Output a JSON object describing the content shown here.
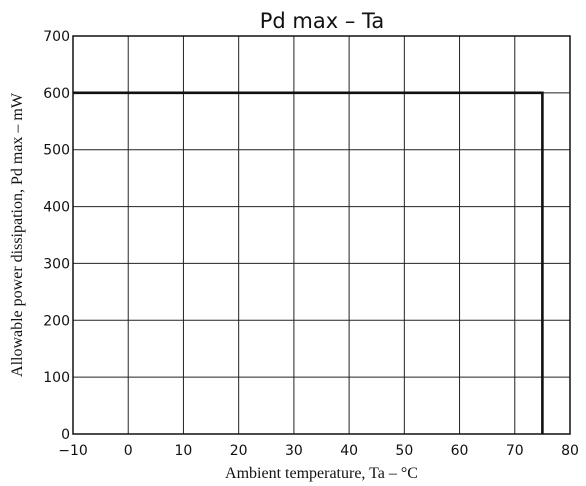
{
  "chart_data": {
    "type": "line",
    "title": "Pd max – Ta",
    "xlabel": "Ambient temperature, Ta – °C",
    "ylabel": "Allowable power dissipation, Pd max – mW",
    "xlim": [
      -10,
      80
    ],
    "ylim": [
      0,
      700
    ],
    "x_ticks": [
      -10,
      0,
      10,
      20,
      30,
      40,
      50,
      60,
      70,
      80
    ],
    "y_ticks": [
      0,
      100,
      200,
      300,
      400,
      500,
      600,
      700
    ],
    "grid": true,
    "series": [
      {
        "x": [
          -10,
          75,
          75
        ],
        "y": [
          600,
          600,
          0
        ]
      }
    ]
  }
}
